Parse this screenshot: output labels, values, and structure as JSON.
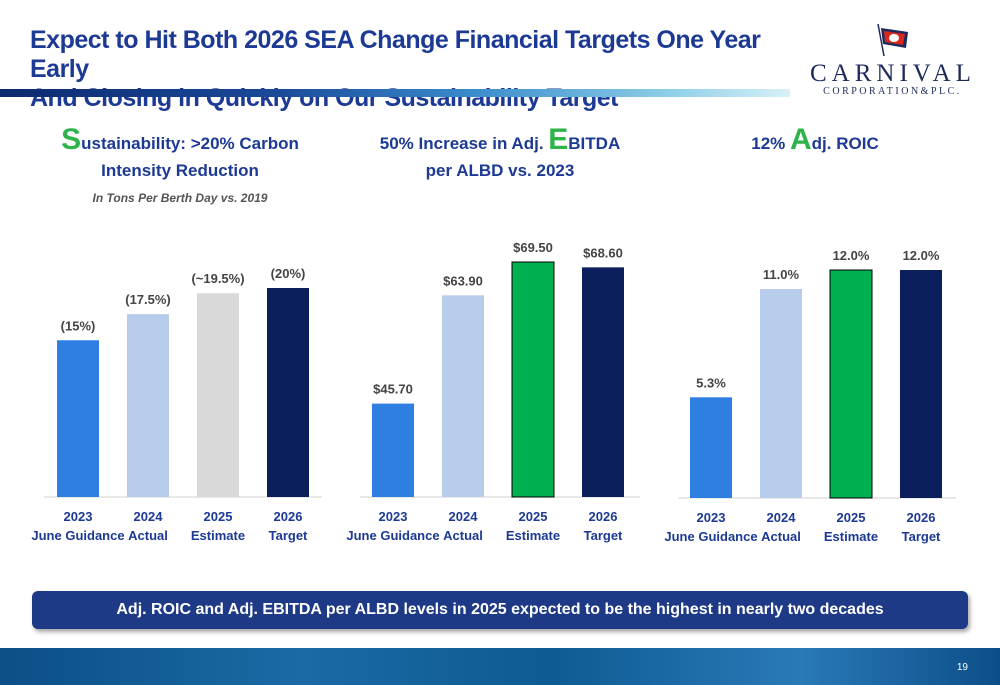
{
  "header": {
    "title_line1": "Expect to Hit Both 2026 SEA Change Financial Targets One Year Early",
    "title_line2": "And Closing in Quickly on Our Sustainability Target"
  },
  "logo": {
    "wordmark": "CARNIVAL",
    "subtitle": "CORPORATION&PLC."
  },
  "panels": {
    "sustainability": {
      "title_letter": "S",
      "title_rest": "ustainability: >20% Carbon",
      "title_line2": "Intensity Reduction",
      "subtitle": "In Tons Per Berth Day vs. 2019"
    },
    "ebitda": {
      "title_prefix": "50% Increase in Adj. ",
      "title_letter": "E",
      "title_rest": "BITDA",
      "title_line2": "per ALBD vs. 2023"
    },
    "roic": {
      "title_prefix": "12% ",
      "title_letter": "A",
      "title_rest": "dj. ROIC"
    }
  },
  "colors": {
    "guidance": "#2f7fe3",
    "actual": "#b8cdeb",
    "estimate_grey": "#d9d9d9",
    "estimate_green": "#00b050",
    "target": "#0a1f5c"
  },
  "chart_data": [
    {
      "type": "bar",
      "categories": [
        [
          "2023",
          "June Guidance"
        ],
        [
          "2024",
          "Actual"
        ],
        [
          "2025",
          "Estimate"
        ],
        [
          "2026",
          "Target"
        ]
      ],
      "values": [
        15,
        17.5,
        19.5,
        20
      ],
      "labels": [
        "(15%)",
        "(17.5%)",
        "(~19.5%)",
        "(20%)"
      ],
      "colors": [
        "#2f7fe3",
        "#b8cdeb",
        "#d9d9d9",
        "#0a1f5c"
      ],
      "ylim": [
        0,
        22.5
      ]
    },
    {
      "type": "bar",
      "categories": [
        [
          "2023",
          "June Guidance"
        ],
        [
          "2024",
          "Actual"
        ],
        [
          "2025",
          "Estimate"
        ],
        [
          "2026",
          "Target"
        ]
      ],
      "values": [
        45.7,
        63.9,
        69.5,
        68.6
      ],
      "labels": [
        "$45.70",
        "$63.90",
        "$69.50",
        "$68.60"
      ],
      "colors": [
        "#2f7fe3",
        "#b8cdeb",
        "#00b050",
        "#0a1f5c"
      ],
      "ylim": [
        30,
        70.5
      ]
    },
    {
      "type": "bar",
      "categories": [
        [
          "2023",
          "June Guidance"
        ],
        [
          "2024",
          "Actual"
        ],
        [
          "2025",
          "Estimate"
        ],
        [
          "2026",
          "Target"
        ]
      ],
      "values": [
        5.3,
        11.0,
        12.0,
        12.0
      ],
      "labels": [
        "5.3%",
        "11.0%",
        "12.0%",
        "12.0%"
      ],
      "colors": [
        "#2f7fe3",
        "#b8cdeb",
        "#00b050",
        "#0a1f5c"
      ],
      "ylim": [
        0,
        12.2
      ]
    }
  ],
  "banner": {
    "text": "Adj. ROIC and Adj. EBITDA per ALBD levels in 2025 expected to be the highest in nearly two decades"
  },
  "footer": {
    "page_number": "19"
  }
}
